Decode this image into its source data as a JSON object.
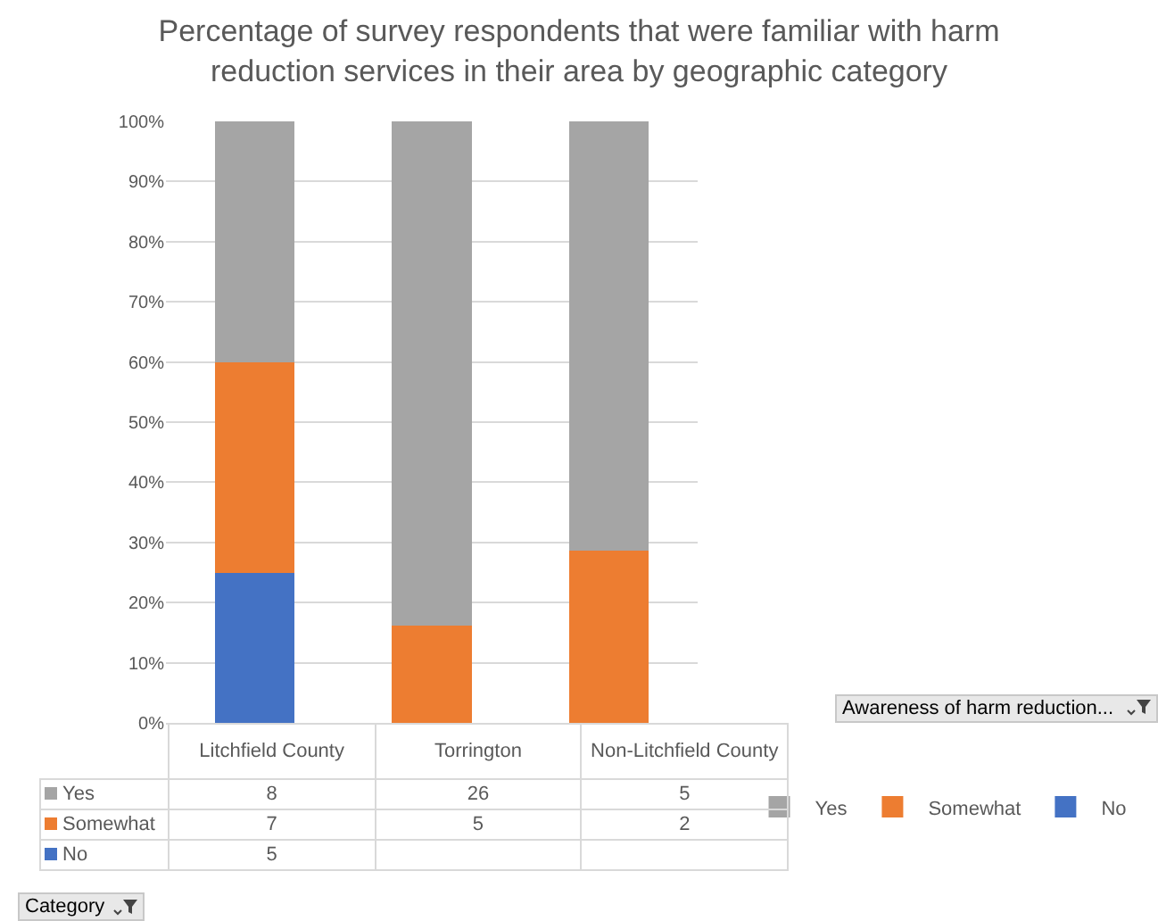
{
  "chart_data": [
    {
      "type": "bar",
      "title": "Percentage of survey respondents that were familiar with harm reduction services in their area by geographic category",
      "categories": [
        null,
        null,
        null
      ],
      "stacked": true,
      "series": [
        {
          "name": "No",
          "color": "#4472c4",
          "values": [
            25,
            null,
            null
          ]
        },
        {
          "name": "Somewhat",
          "color": "#ed7d31",
          "values": [
            35,
            16.1,
            28.6
          ]
        },
        {
          "name": "Yes",
          "color": "#a5a5a5",
          "values": [
            40,
            83.9,
            71.4
          ]
        }
      ],
      "ylim": [
        0,
        100
      ],
      "yticks": [
        {
          "value": 0,
          "label": "0%"
        },
        {
          "value": 10,
          "label": "10%"
        },
        {
          "value": 20,
          "label": "20%"
        },
        {
          "value": 30,
          "label": "30%"
        },
        {
          "value": 40,
          "label": "40%"
        },
        {
          "value": 50,
          "label": "50%"
        },
        {
          "value": 60,
          "label": "60%"
        },
        {
          "value": 70,
          "label": "70%"
        },
        {
          "value": 80,
          "label": "80%"
        },
        {
          "value": 90,
          "label": "90%"
        },
        {
          "value": 100,
          "label": "100%"
        }
      ],
      "grid": "y",
      "legend": "bottom right",
      "legend_title": "Awareness of harm reduction...",
      "annotations": [
        "Category"
      ]
    },
    {
      "type": "other",
      "categories": [
        "Litchfield County",
        "Torrington",
        "Non-Litchfield County"
      ],
      "series": [
        {
          "name": "Yes",
          "color": "#a5a5a5",
          "values": [
            8,
            26,
            5
          ]
        },
        {
          "name": "Somewhat",
          "color": "#ed7d31",
          "values": [
            7,
            5,
            2
          ]
        },
        {
          "name": "No",
          "color": "#4472c4",
          "values": [
            5,
            null,
            null
          ]
        }
      ],
      "data_labels": true
    }
  ]
}
